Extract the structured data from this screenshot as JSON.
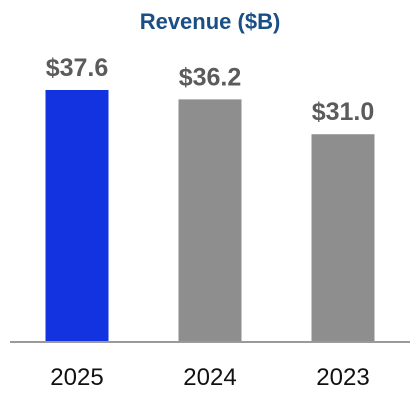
{
  "chart_data": {
    "type": "bar",
    "title": "Revenue ($B)",
    "xlabel": "",
    "ylabel": "",
    "categories": [
      "2025",
      "2024",
      "2023"
    ],
    "values": [
      37.6,
      36.2,
      31.0
    ],
    "value_labels": [
      "$37.6",
      "$36.2",
      "$31.0"
    ],
    "ylim": [
      0,
      37.6
    ],
    "grid": false,
    "legend": "none",
    "colors": {
      "title": "#1a4f86",
      "highlight_bar": "#1433e0",
      "bar": "#8e8e8e",
      "value_label": "#5b5b5b",
      "axis": "#9a9a9a",
      "tick_label": "#111111"
    }
  }
}
